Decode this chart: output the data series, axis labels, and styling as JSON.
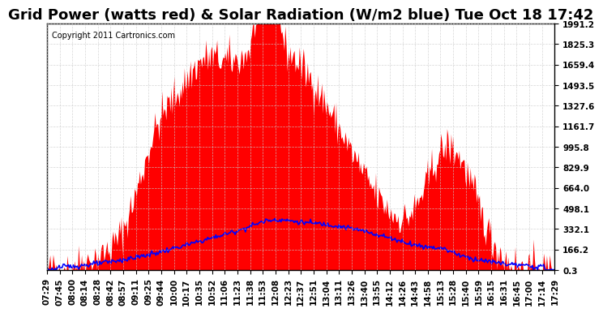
{
  "title": "Grid Power (watts red) & Solar Radiation (W/m2 blue) Tue Oct 18 17:42",
  "copyright": "Copyright 2011 Cartronics.com",
  "y_ticks": [
    0.3,
    166.2,
    332.1,
    498.1,
    664.0,
    829.9,
    995.8,
    1161.7,
    1327.6,
    1493.5,
    1659.4,
    1825.3,
    1991.2
  ],
  "x_labels": [
    "07:29",
    "07:45",
    "08:00",
    "08:14",
    "08:28",
    "08:42",
    "08:57",
    "09:11",
    "09:25",
    "09:44",
    "10:00",
    "10:17",
    "10:35",
    "10:52",
    "11:06",
    "11:23",
    "11:38",
    "11:53",
    "12:08",
    "12:23",
    "12:37",
    "12:51",
    "13:04",
    "13:11",
    "13:26",
    "13:40",
    "13:55",
    "14:12",
    "14:26",
    "14:43",
    "14:58",
    "15:13",
    "15:28",
    "15:40",
    "15:59",
    "16:15",
    "16:31",
    "16:45",
    "17:00",
    "17:14",
    "17:29"
  ],
  "red_fill_color": "#FF0000",
  "blue_line_color": "#0000FF",
  "background_color": "#FFFFFF",
  "grid_color": "#CCCCCC",
  "title_fontsize": 13,
  "tick_fontsize": 7.5
}
